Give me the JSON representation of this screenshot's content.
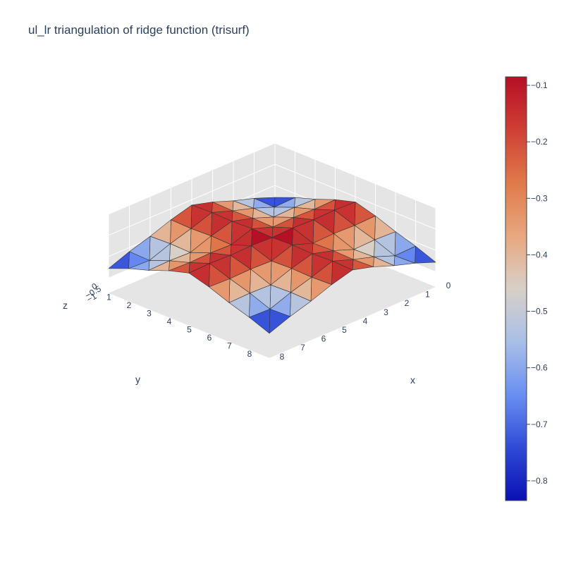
{
  "chart_data": {
    "type": "trisurf",
    "title": "ul_lr triangulation of ridge function (trisurf)",
    "x_axis": {
      "title": "x",
      "ticks": [
        "0",
        "1",
        "2",
        "3",
        "4",
        "5",
        "6",
        "7",
        "8"
      ],
      "range": [
        0,
        8
      ]
    },
    "y_axis": {
      "title": "y",
      "ticks": [
        "1",
        "2",
        "3",
        "4",
        "5",
        "6",
        "7",
        "8"
      ],
      "range": [
        0,
        8
      ]
    },
    "z_axis": {
      "title": "z",
      "ticks": [
        "0",
        "−0.5",
        "−1"
      ],
      "range": [
        -1,
        0
      ]
    },
    "colorbar": {
      "ticks": [
        "−0.1",
        "−0.2",
        "−0.3",
        "−0.4",
        "−0.5",
        "−0.6",
        "−0.7",
        "−0.8"
      ],
      "tick_values": [
        -0.1,
        -0.2,
        -0.3,
        -0.4,
        -0.5,
        -0.6,
        -0.7,
        -0.8
      ],
      "range": [
        -0.835,
        -0.085
      ],
      "colorscale": [
        "#0a10b4",
        "#2f4bd6",
        "#6a8ff2",
        "#a9bfe8",
        "#d8d0c7",
        "#e8a77f",
        "#e07a4a",
        "#cf3f35",
        "#b50f25"
      ]
    },
    "grid": true,
    "legend": "none",
    "colors": {
      "edge": "#333333",
      "scene_bg": "#e5e5e5",
      "grid": "#ffffff"
    }
  }
}
